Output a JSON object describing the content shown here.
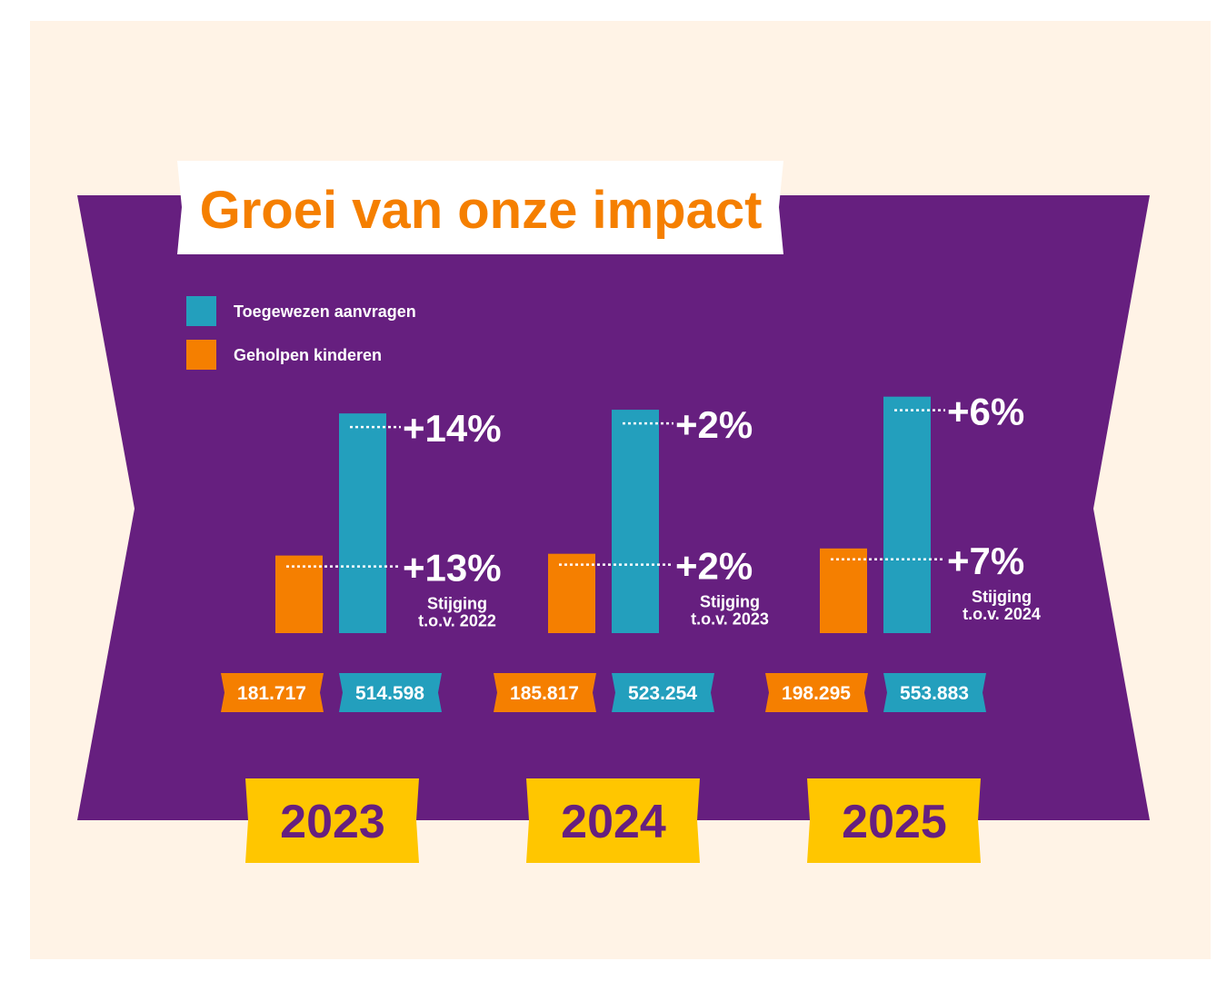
{
  "chart_data": {
    "type": "bar",
    "title": "Groei van onze impact",
    "categories": [
      "2023",
      "2024",
      "2025"
    ],
    "series": [
      {
        "name": "Geholpen kinderen",
        "color": "#f57f00",
        "values": [
          181717,
          185817,
          198295
        ],
        "labels": [
          "181.717",
          "185.817",
          "198.295"
        ],
        "growth": [
          "+13%",
          "+2%",
          "+7%"
        ]
      },
      {
        "name": "Toegewezen aanvragen",
        "color": "#239fbd",
        "values": [
          514598,
          523254,
          553883
        ],
        "labels": [
          "514.598",
          "523.254",
          "553.883"
        ],
        "growth": [
          "+14%",
          "+2%",
          "+6%"
        ]
      }
    ],
    "growth_caption": "Stijging",
    "growth_reference": [
      "t.o.v. 2022",
      "t.o.v. 2023",
      "t.o.v. 2024"
    ],
    "legend": [
      "Toegewezen aanvragen",
      "Geholpen kinderen"
    ],
    "legend_placement": "top-left",
    "xlabel": "",
    "ylabel": ""
  },
  "colors": {
    "background": "#fff3e6",
    "band": "#661f7f",
    "year": "#ffc600",
    "yearText": "#661f7f",
    "title": "#f57f00"
  }
}
